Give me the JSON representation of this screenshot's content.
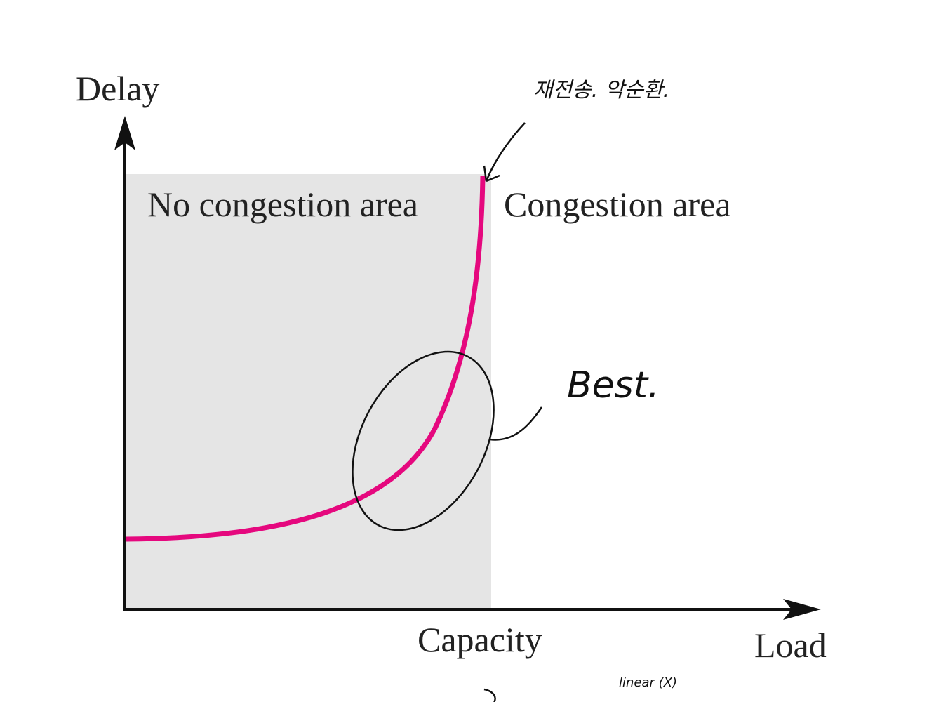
{
  "labels": {
    "y_axis": "Delay",
    "x_axis": "Load",
    "left_area": "No congestion area",
    "right_area": "Congestion area",
    "capacity": "Capacity"
  },
  "annotations": {
    "retransmission": "재전송. 악순환.",
    "best": "Best.",
    "linear": "linear (X)"
  }
}
